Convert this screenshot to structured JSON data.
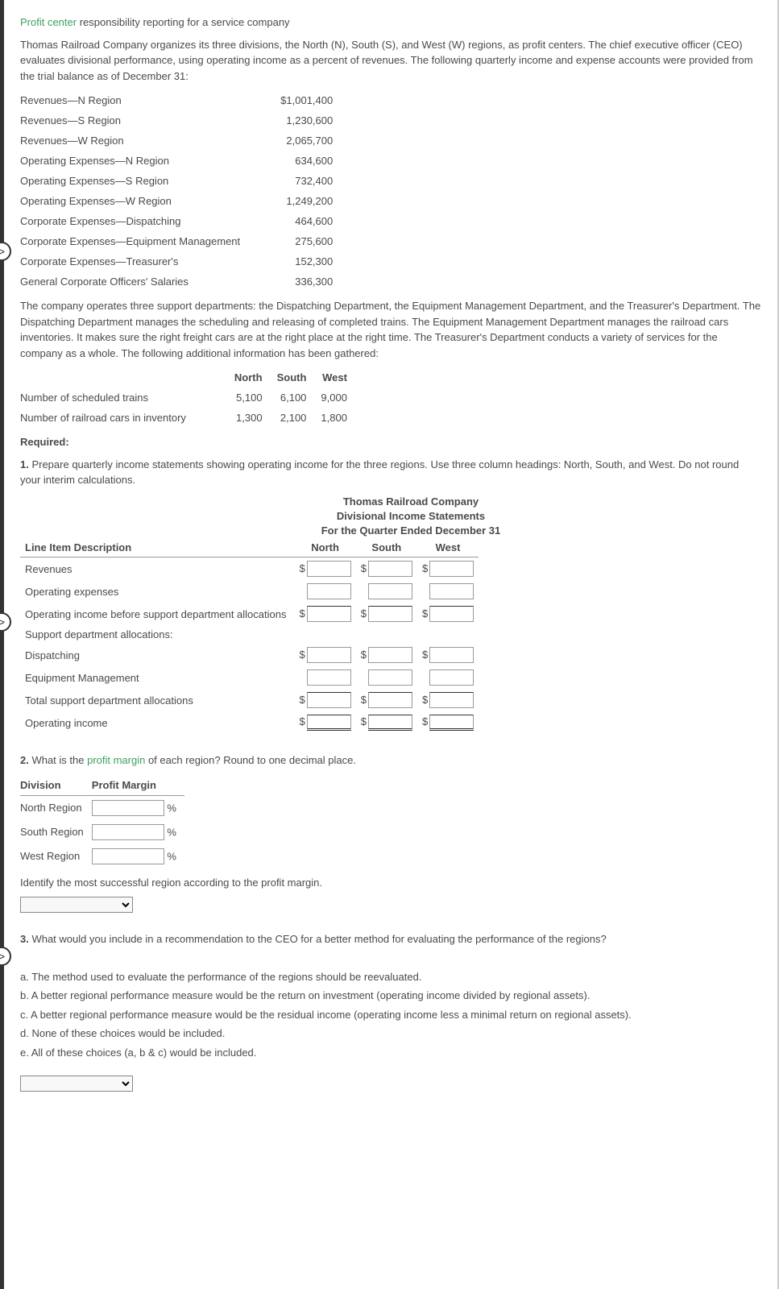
{
  "title_green": "Profit center",
  "title_rest": " responsibility reporting for a service company",
  "intro": "Thomas Railroad Company organizes its three divisions, the North (N), South (S), and West (W) regions, as profit centers. The chief executive officer (CEO) evaluates divisional performance, using operating income as a percent of revenues. The following quarterly income and expense accounts were provided from the trial balance as of December 31:",
  "accounts": [
    {
      "label": "Revenues—N Region",
      "value": "$1,001,400"
    },
    {
      "label": "Revenues—S Region",
      "value": "1,230,600"
    },
    {
      "label": "Revenues—W Region",
      "value": "2,065,700"
    },
    {
      "label": "Operating Expenses—N Region",
      "value": "634,600"
    },
    {
      "label": "Operating Expenses—S Region",
      "value": "732,400"
    },
    {
      "label": "Operating Expenses—W Region",
      "value": "1,249,200"
    },
    {
      "label": "Corporate Expenses—Dispatching",
      "value": "464,600"
    },
    {
      "label": "Corporate Expenses—Equipment Management",
      "value": "275,600"
    },
    {
      "label": "Corporate Expenses—Treasurer's",
      "value": "152,300"
    },
    {
      "label": "General Corporate Officers' Salaries",
      "value": "336,300"
    }
  ],
  "support_para": "The company operates three support departments: the Dispatching Department, the Equipment Management Department, and the Treasurer's Department. The Dispatching Department manages the scheduling and releasing of completed trains. The Equipment Management Department manages the railroad cars inventories. It makes sure the right freight cars are at the right place at the right time. The Treasurer's Department conducts a variety of services for the company as a whole. The following additional information has been gathered:",
  "activity": {
    "headers": [
      "",
      "North",
      "South",
      "West"
    ],
    "rows": [
      {
        "label": "Number of scheduled trains",
        "n": "5,100",
        "s": "6,100",
        "w": "9,000"
      },
      {
        "label": "Number of railroad cars in inventory",
        "n": "1,300",
        "s": "2,100",
        "w": "1,800"
      }
    ]
  },
  "required_label": "Required:",
  "q1": {
    "num": "1.",
    "text": " Prepare quarterly income statements showing operating income for the three regions. Use three column headings: North, South, and West. Do not round your interim calculations."
  },
  "stmt_header": {
    "l1": "Thomas Railroad Company",
    "l2": "Divisional Income Statements",
    "l3": "For the Quarter Ended December 31"
  },
  "stmt_cols": [
    "Line Item Description",
    "North",
    "South",
    "West"
  ],
  "stmt_rows": [
    {
      "label": "Revenues",
      "dollar": true,
      "indent": 0,
      "sum": false,
      "dbl": false
    },
    {
      "label": "Operating expenses",
      "dollar": false,
      "indent": 0,
      "sum": false,
      "dbl": false
    },
    {
      "label": "Operating income before support department allocations",
      "dollar": true,
      "indent": 0,
      "sum": true,
      "dbl": false
    },
    {
      "label": "Support department allocations:",
      "noinput": true,
      "indent": 0
    },
    {
      "label": "Dispatching",
      "dollar": true,
      "indent": 1,
      "sum": false,
      "dbl": false
    },
    {
      "label": "Equipment Management",
      "dollar": false,
      "indent": 1,
      "sum": false,
      "dbl": false
    },
    {
      "label": "Total support department allocations",
      "dollar": true,
      "indent": 0,
      "sum": true,
      "dbl": false
    },
    {
      "label": "Operating income",
      "dollar": true,
      "indent": 0,
      "sum": true,
      "dbl": true
    }
  ],
  "q2": {
    "num": "2.",
    "text_pre": " What is the ",
    "green": "profit margin",
    "text_post": " of each region? Round to one decimal place."
  },
  "margin": {
    "headers": [
      "Division",
      "Profit Margin"
    ],
    "rows": [
      {
        "label": "North Region"
      },
      {
        "label": "South Region"
      },
      {
        "label": "West Region"
      }
    ],
    "pct": "%"
  },
  "identify_text": "Identify the most successful region according to the profit margin.",
  "q3": {
    "num": "3.",
    "text": " What would you include in a recommendation to the CEO for a better method for evaluating the performance of the regions?"
  },
  "options": [
    "a. The method used to evaluate the performance of the regions should be reevaluated.",
    "b. A better regional performance measure would be the return on investment (operating income divided by regional assets).",
    "c. A better regional performance measure would be the residual income (operating income less a minimal return on regional assets).",
    "d. None of these choices would be included.",
    "e. All of these choices (a, b & c) would be included."
  ],
  "side_handles": [
    300,
    760,
    1175
  ]
}
